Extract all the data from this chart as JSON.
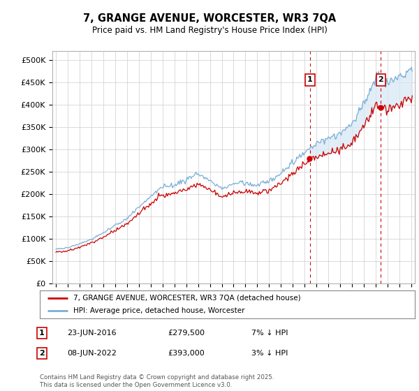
{
  "title": "7, GRANGE AVENUE, WORCESTER, WR3 7QA",
  "subtitle": "Price paid vs. HM Land Registry's House Price Index (HPI)",
  "hpi_color": "#7aaed6",
  "price_color": "#cc0000",
  "fill_color": "#d6e8f5",
  "vline_color": "#cc0000",
  "marker_color": "#cc0000",
  "annotation_box_color": "#cc0000",
  "background_color": "#ffffff",
  "grid_color": "#cccccc",
  "legend_label_property": "7, GRANGE AVENUE, WORCESTER, WR3 7QA (detached house)",
  "legend_label_hpi": "HPI: Average price, detached house, Worcester",
  "annotation1_label": "1",
  "annotation1_date": "23-JUN-2016",
  "annotation1_price": "£279,500",
  "annotation1_pct": "7% ↓ HPI",
  "annotation2_label": "2",
  "annotation2_date": "08-JUN-2022",
  "annotation2_price": "£393,000",
  "annotation2_pct": "3% ↓ HPI",
  "footer": "Contains HM Land Registry data © Crown copyright and database right 2025.\nThis data is licensed under the Open Government Licence v3.0.",
  "x_start_year": 1995,
  "x_end_year": 2025,
  "sale1_year": 2016.458,
  "sale1_price": 279500,
  "sale2_year": 2022.44,
  "sale2_price": 393000,
  "ylim": [
    0,
    520000
  ],
  "yticks": [
    0,
    50000,
    100000,
    150000,
    200000,
    250000,
    300000,
    350000,
    400000,
    450000,
    500000
  ]
}
